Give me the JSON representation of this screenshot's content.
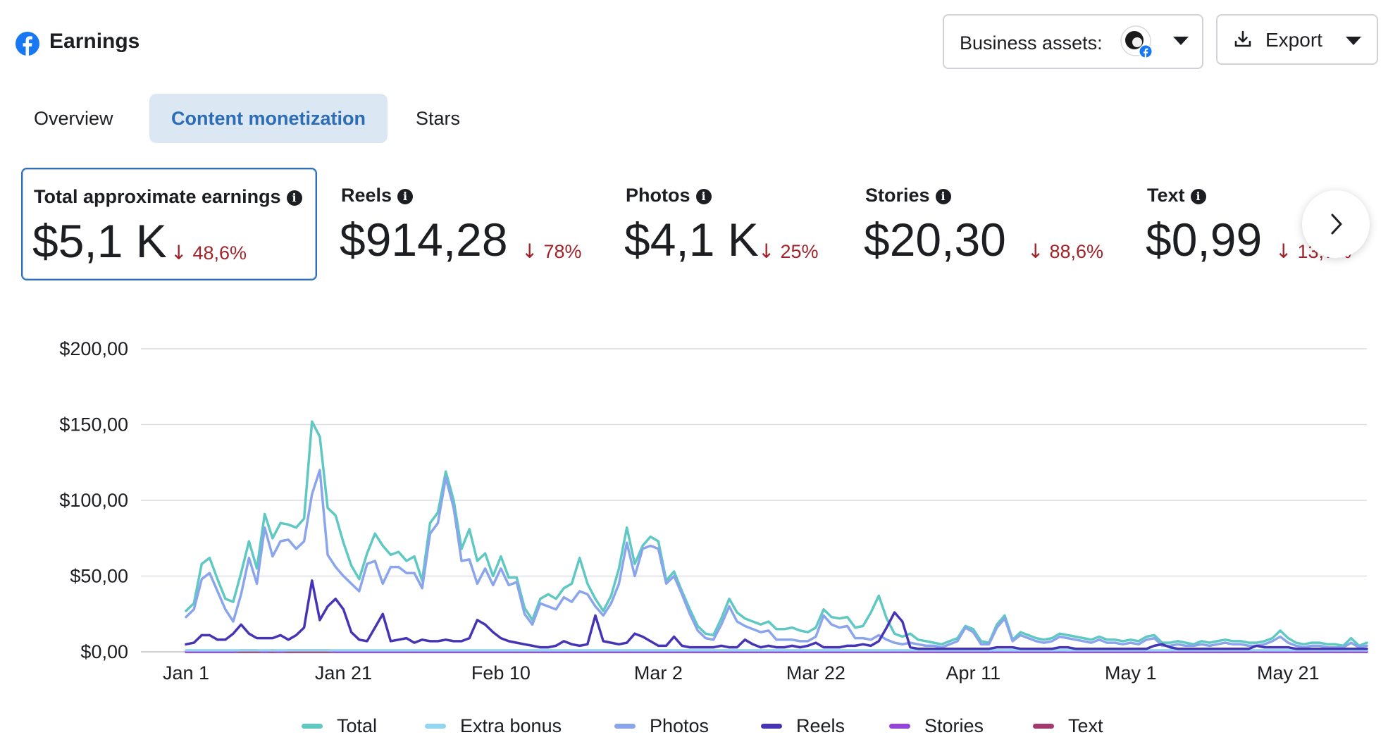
{
  "header": {
    "title": "Earnings",
    "business_assets_label": "Business assets:",
    "export_label": "Export"
  },
  "tabs": [
    {
      "label": "Overview",
      "active": false
    },
    {
      "label": "Content monetization",
      "active": true
    },
    {
      "label": "Stars",
      "active": false
    }
  ],
  "metrics": [
    {
      "label": "Total approximate earnings",
      "value": "$5,1 K",
      "change": "48,6%",
      "selected": true
    },
    {
      "label": "Reels",
      "value": "$914,28",
      "change": "78%",
      "selected": false
    },
    {
      "label": "Photos",
      "value": "$4,1 K",
      "change": "25%",
      "selected": false
    },
    {
      "label": "Stories",
      "value": "$20,30",
      "change": "88,6%",
      "selected": false
    },
    {
      "label": "Text",
      "value": "$0,99",
      "change": "13,7%",
      "selected": false
    }
  ],
  "colors": {
    "accent": "#2d6db5",
    "negative": "#a3232b",
    "fb_blue": "#1877f2"
  },
  "icons": {
    "brand": "facebook-icon",
    "export": "download-icon",
    "info": "info-icon",
    "next": "chevron-right-icon"
  },
  "chart_data": {
    "type": "line",
    "x_start": "Jan 1",
    "x_ticks": [
      "Jan 1",
      "Jan 21",
      "Feb 10",
      "Mar 2",
      "Mar 22",
      "Apr 11",
      "May 1",
      "May 21"
    ],
    "y_ticks": [
      "$0,00",
      "$50,00",
      "$100,00",
      "$150,00",
      "$200,00"
    ],
    "ylim": [
      0,
      200
    ],
    "grid": true,
    "legend": "bottom",
    "series": [
      {
        "name": "Total",
        "color": "#5fc8c3",
        "values": [
          27,
          32,
          58,
          62,
          48,
          35,
          33,
          52,
          73,
          55,
          91,
          75,
          85,
          84,
          82,
          88,
          152,
          142,
          95,
          90,
          72,
          57,
          48,
          65,
          78,
          70,
          64,
          66,
          60,
          63,
          47,
          85,
          92,
          119,
          100,
          68,
          81,
          60,
          65,
          50,
          63,
          49,
          49,
          29,
          21,
          35,
          38,
          35,
          42,
          45,
          62,
          45,
          35,
          27,
          37,
          55,
          82,
          58,
          70,
          76,
          73,
          47,
          53,
          40,
          28,
          17,
          12,
          11,
          22,
          35,
          26,
          22,
          20,
          18,
          20,
          15,
          15,
          16,
          14,
          13,
          16,
          28,
          23,
          22,
          23,
          16,
          17,
          26,
          37,
          22,
          12,
          10,
          12,
          8,
          7,
          6,
          5,
          7,
          9,
          17,
          15,
          7,
          6,
          18,
          24,
          8,
          13,
          11,
          9,
          8,
          9,
          12,
          11,
          10,
          9,
          8,
          10,
          8,
          8,
          7,
          8,
          7,
          10,
          11,
          6,
          6,
          7,
          6,
          5,
          7,
          6,
          7,
          8,
          7,
          7,
          6,
          6,
          7,
          9,
          14,
          9,
          6,
          5,
          6,
          6,
          5,
          5,
          4,
          9,
          4,
          6
        ]
      },
      {
        "name": "Extra bonus",
        "color": "#93d6f2",
        "values": [
          1,
          1,
          1,
          1,
          1,
          1,
          1,
          1,
          1,
          1,
          1,
          1,
          1,
          1,
          1,
          1,
          1,
          1,
          1,
          1,
          1,
          1,
          1,
          1,
          1,
          1,
          1,
          1,
          1,
          1,
          1,
          1,
          1,
          1,
          1,
          1,
          1,
          1,
          1,
          1,
          1,
          1,
          1,
          1,
          1,
          1,
          1,
          1,
          1,
          1,
          1,
          1,
          1,
          1,
          1,
          1,
          1,
          1,
          1,
          1,
          1,
          1,
          1,
          1,
          1,
          1,
          1,
          1,
          1,
          1,
          1,
          1,
          1,
          1,
          1,
          1,
          1,
          1,
          1,
          1,
          1,
          1,
          1,
          1,
          1,
          1,
          1,
          1,
          1,
          1,
          1,
          1,
          1,
          1,
          1,
          1,
          1,
          1,
          1,
          1,
          1,
          1,
          1,
          1,
          1,
          1,
          1,
          1,
          1,
          1,
          1,
          1,
          1,
          1,
          1,
          1,
          1,
          1,
          1,
          1,
          1,
          1,
          1,
          1,
          1,
          1,
          1,
          1,
          1,
          1,
          1,
          1,
          1,
          1,
          1,
          1,
          1,
          1,
          1,
          1,
          1,
          1,
          1,
          1,
          1,
          1,
          1,
          1,
          1,
          1,
          1
        ]
      },
      {
        "name": "Photos",
        "color": "#8ba5ec",
        "values": [
          23,
          28,
          48,
          52,
          40,
          28,
          20,
          38,
          62,
          45,
          82,
          63,
          73,
          74,
          68,
          73,
          104,
          120,
          64,
          56,
          50,
          45,
          40,
          58,
          60,
          45,
          56,
          56,
          52,
          52,
          42,
          78,
          85,
          115,
          95,
          60,
          61,
          45,
          55,
          44,
          55,
          44,
          46,
          25,
          18,
          32,
          30,
          28,
          36,
          33,
          40,
          38,
          30,
          24,
          32,
          45,
          72,
          50,
          68,
          70,
          68,
          45,
          50,
          38,
          25,
          14,
          9,
          8,
          18,
          30,
          20,
          17,
          15,
          13,
          14,
          8,
          8,
          8,
          7,
          7,
          10,
          24,
          18,
          16,
          17,
          9,
          9,
          8,
          11,
          8,
          6,
          5,
          6,
          5,
          4,
          4,
          3,
          5,
          7,
          16,
          13,
          5,
          5,
          16,
          22,
          7,
          11,
          9,
          7,
          6,
          7,
          10,
          9,
          8,
          7,
          6,
          8,
          6,
          6,
          5,
          6,
          5,
          8,
          9,
          4,
          4,
          5,
          4,
          4,
          5,
          4,
          5,
          6,
          5,
          5,
          4,
          4,
          5,
          7,
          10,
          6,
          4,
          3,
          4,
          4,
          3,
          3,
          3,
          6,
          3,
          4
        ]
      },
      {
        "name": "Reels",
        "color": "#4535b5",
        "values": [
          5,
          6,
          11,
          11,
          8,
          8,
          12,
          18,
          12,
          9,
          9,
          9,
          11,
          8,
          11,
          16,
          47,
          21,
          30,
          35,
          28,
          13,
          8,
          7,
          16,
          25,
          7,
          8,
          9,
          6,
          8,
          7,
          7,
          8,
          7,
          7,
          9,
          21,
          18,
          13,
          9,
          7,
          6,
          5,
          4,
          3,
          3,
          4,
          7,
          5,
          4,
          5,
          24,
          7,
          6,
          5,
          6,
          12,
          10,
          7,
          4,
          4,
          10,
          4,
          3,
          3,
          3,
          3,
          4,
          3,
          3,
          8,
          5,
          3,
          4,
          3,
          3,
          4,
          3,
          4,
          6,
          3,
          3,
          3,
          4,
          4,
          5,
          4,
          7,
          16,
          26,
          20,
          3,
          2,
          2,
          2,
          2,
          2,
          2,
          2,
          2,
          2,
          2,
          3,
          3,
          3,
          2,
          2,
          2,
          2,
          2,
          3,
          3,
          2,
          2,
          2,
          2,
          2,
          2,
          2,
          2,
          2,
          2,
          4,
          5,
          3,
          2,
          2,
          2,
          2,
          2,
          2,
          2,
          2,
          2,
          2,
          4,
          3,
          3,
          3,
          3,
          2,
          2,
          2,
          2,
          2,
          2,
          2,
          2,
          2,
          2
        ]
      },
      {
        "name": "Stories",
        "color": "#9546d8",
        "values": [
          0,
          0,
          0,
          0,
          0,
          0,
          0,
          1,
          1,
          1,
          0,
          1,
          0,
          1,
          1,
          1,
          1,
          1,
          1,
          0,
          0,
          0,
          0,
          0,
          0,
          0,
          0,
          0,
          0,
          0,
          0,
          0,
          0,
          0,
          0,
          0,
          0,
          0,
          0,
          0,
          0,
          0,
          0,
          0,
          0,
          0,
          0,
          0,
          0,
          0,
          0,
          0,
          0,
          0,
          0,
          0,
          0,
          0,
          0,
          0,
          0,
          0,
          0,
          0,
          0,
          0,
          0,
          0,
          0,
          0,
          0,
          0,
          0,
          0,
          0,
          0,
          0,
          0,
          0,
          0,
          0,
          0,
          0,
          0,
          0,
          0,
          0,
          0,
          0,
          0,
          0,
          0,
          0,
          0,
          0,
          0,
          0,
          0,
          0,
          0,
          0,
          0,
          0,
          0,
          0,
          0,
          0,
          0,
          0,
          0,
          0,
          0,
          0,
          0,
          0,
          0,
          0,
          0,
          0,
          0,
          0,
          0,
          0,
          0,
          0,
          0,
          0,
          0,
          0,
          0,
          0,
          0,
          0,
          0,
          0,
          0,
          0,
          0,
          0,
          0,
          0,
          0,
          0,
          0,
          0,
          0,
          0,
          0,
          0,
          0,
          0
        ]
      },
      {
        "name": "Text",
        "color": "#a33a6f",
        "values": [
          0,
          0,
          0,
          0,
          0,
          0,
          0,
          0,
          0,
          0,
          0,
          0,
          0,
          0,
          0,
          0,
          0,
          0,
          0,
          0,
          0,
          0,
          0,
          0,
          0,
          0,
          0,
          0,
          0,
          0,
          0,
          0,
          0,
          0,
          0,
          0,
          0,
          0,
          0,
          0,
          0,
          0,
          0,
          0,
          0,
          0,
          0,
          0,
          0,
          0,
          0,
          0,
          0,
          0,
          0,
          0,
          0,
          0,
          0,
          0,
          0,
          0,
          0,
          0,
          0,
          0,
          0,
          0,
          0,
          0,
          0,
          0,
          0,
          0,
          0,
          0,
          0,
          0,
          0,
          0,
          0,
          0,
          0,
          0,
          0,
          0,
          0,
          0,
          0,
          0,
          0,
          0,
          0,
          0,
          0,
          0,
          0,
          0,
          0,
          0,
          0,
          0,
          0,
          0,
          0,
          0,
          0,
          0,
          0,
          0,
          0,
          0,
          0,
          0,
          0,
          0,
          0,
          0,
          0,
          0,
          0,
          0,
          0,
          0,
          0,
          0,
          0,
          0,
          0,
          0,
          0,
          0,
          0,
          0,
          0,
          0,
          0,
          0,
          0,
          0,
          0,
          0,
          0,
          0,
          0,
          0,
          0,
          0,
          0,
          0,
          0
        ]
      }
    ]
  }
}
